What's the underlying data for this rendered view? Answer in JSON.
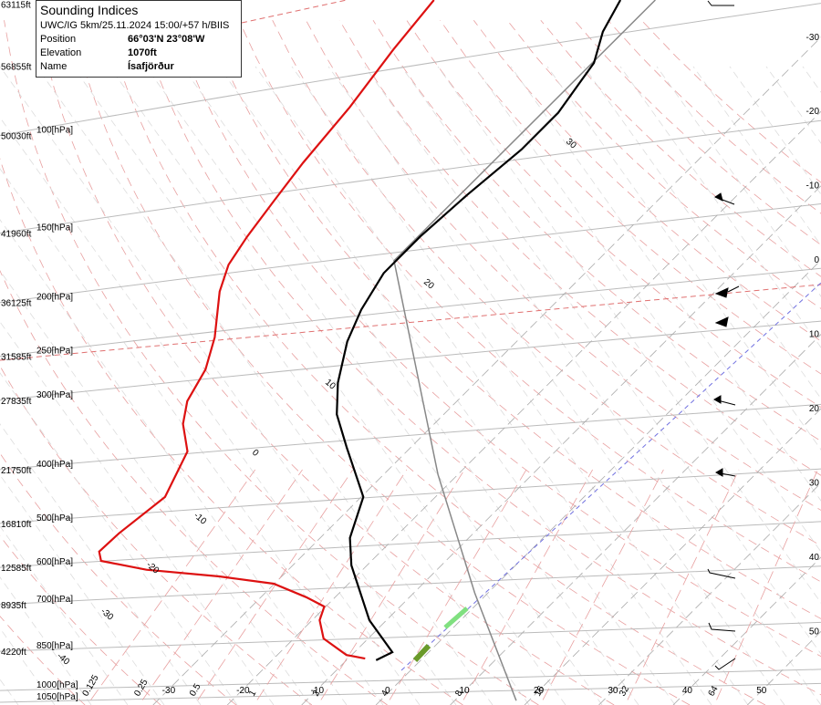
{
  "chart_data": {
    "type": "skewt",
    "ylim": [
      1062,
      57
    ],
    "xlim": [
      -50.6,
      59.9
    ],
    "yticks": [
      {
        "value": 1050,
        "label": "1050[hPa]"
      },
      {
        "value": 1000,
        "label": "1000[hPa]"
      },
      {
        "value": 850,
        "label": "850[hPa]"
      },
      {
        "value": 700,
        "label": "700[hPa]"
      },
      {
        "value": 600,
        "label": "600[hPa]"
      },
      {
        "value": 500,
        "label": "500[hPa]"
      },
      {
        "value": 400,
        "label": "400[hPa]"
      },
      {
        "value": 300,
        "label": "300[hPa]"
      },
      {
        "value": 250,
        "label": "250[hPa]"
      },
      {
        "value": 200,
        "label": "200[hPa]"
      },
      {
        "value": 150,
        "label": "150[hPa]"
      },
      {
        "value": 100,
        "label": "100[hPa]"
      }
    ],
    "altitude_ticks": [
      {
        "value": 58,
        "label": "63115ft"
      },
      {
        "value": 75,
        "label": "56855ft"
      },
      {
        "value": 100,
        "label": "50030ft"
      },
      {
        "value": 150,
        "label": "41960ft"
      },
      {
        "value": 200,
        "label": "36125ft"
      },
      {
        "value": 250,
        "label": "31585ft"
      },
      {
        "value": 300,
        "label": "27835ft"
      },
      {
        "value": 400,
        "label": "21750ft"
      },
      {
        "value": 500,
        "label": "16810ft"
      },
      {
        "value": 600,
        "label": "12585ft"
      },
      {
        "value": 700,
        "label": "8935ft"
      },
      {
        "value": 850,
        "label": "4220ft"
      }
    ],
    "xticks": [
      -30,
      -20,
      -10,
      0,
      10,
      20,
      30,
      40,
      50
    ],
    "mixing_ratios": [
      0.125,
      0.25,
      0.5,
      1,
      2,
      4,
      8,
      16,
      32,
      64
    ],
    "adiabat_labels": [
      -40,
      -30,
      -20,
      -10,
      0,
      10,
      20,
      30
    ],
    "series": [
      {
        "color": "#888888",
        "pressure": [
          1043,
          667,
          408,
          168,
          57
        ],
        "values": [
          18.3,
          -1.8,
          -22.7,
          -57.4,
          -57.3
        ]
      },
      {
        "color": "#000000",
        "pressure": [
          882,
          853,
          747,
          595,
          531,
          448,
          364,
          318,
          279,
          235,
          206,
          177,
          152,
          128,
          106,
          91,
          74,
          65,
          57
        ],
        "values": [
          -6.0,
          -4.9,
          -12.3,
          -22.1,
          -26.0,
          -29.7,
          -38.7,
          -44.4,
          -48.5,
          -52.8,
          -55.2,
          -57.1,
          -57.1,
          -56.4,
          -55.2,
          -55.2,
          -57.1,
          -60.1,
          -62.0
        ]
      },
      {
        "color": "#dd1111",
        "pressure": [
          876,
          863,
          806,
          747,
          706,
          679,
          642,
          623,
          606,
          584,
          562,
          521,
          448,
          371,
          331,
          301,
          264,
          231,
          191,
          171,
          152,
          131,
          112,
          89,
          70,
          57
        ],
        "values": [
          -7.7,
          -10.7,
          -16.0,
          -19.0,
          -20.2,
          -23.9,
          -30.1,
          -38.4,
          -49.1,
          -56.4,
          -57.9,
          -57.7,
          -56.4,
          -59.5,
          -63.8,
          -66.3,
          -68.1,
          -71.2,
          -76.7,
          -79.1,
          -80.4,
          -81.6,
          -82.8,
          -84.0,
          -85.9,
          -87.1
        ]
      }
    ]
  },
  "info": {
    "title": "Sounding Indices",
    "run": "UWC/IG 5km/25.11.2024 15:00/+57 h/BIIS",
    "rows": [
      [
        "Position",
        "66°03'N 23°08'W"
      ],
      [
        "Elevation",
        "1070ft"
      ],
      [
        "Name",
        "Ísafjörður"
      ]
    ]
  }
}
